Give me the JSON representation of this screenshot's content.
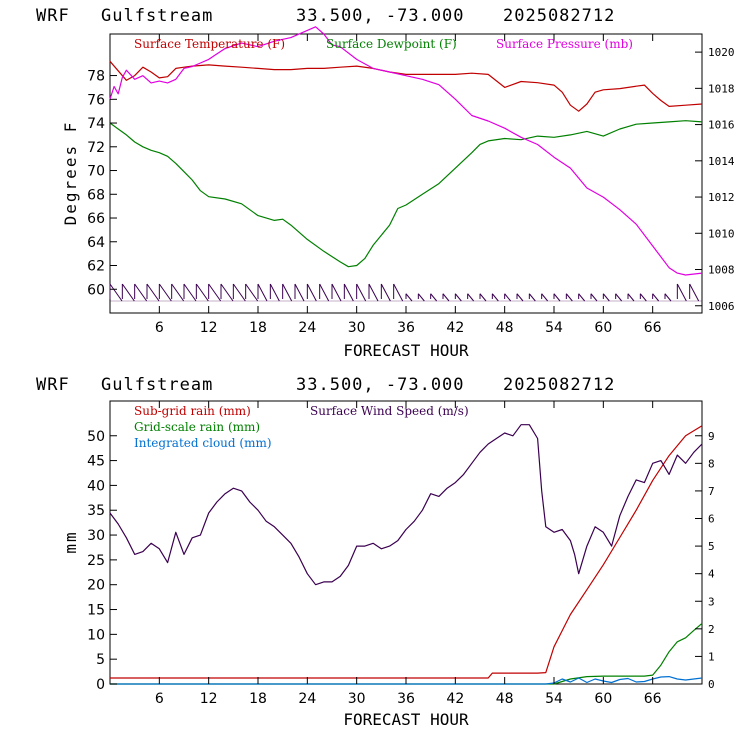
{
  "chart_data": [
    {
      "type": "line",
      "header": {
        "model": "WRF",
        "location": "Gulfstream",
        "coords": "33.500, -73.000",
        "date": "2025082712"
      },
      "xlabel": "FORECAST HOUR",
      "ylabel": "Degrees F",
      "xlim": [
        0,
        72
      ],
      "ylim": [
        58,
        81.5
      ],
      "xticks": [
        6,
        12,
        18,
        24,
        30,
        36,
        42,
        48,
        54,
        60,
        66
      ],
      "xtick_labels": [
        "6",
        "12",
        "18",
        "24",
        "30",
        "36",
        "42",
        "48",
        "54",
        "60",
        "66"
      ],
      "yticks": [
        60,
        62,
        64,
        66,
        68,
        70,
        72,
        74,
        76,
        78
      ],
      "ytick_labels": [
        "60",
        "62",
        "64",
        "66",
        "68",
        "70",
        "72",
        "74",
        "76",
        "78"
      ],
      "y2lim": [
        1005.6,
        1021.0
      ],
      "y2ticks": [
        1006,
        1008,
        1010,
        1012,
        1014,
        1016,
        1018,
        1020
      ],
      "y2tick_labels": [
        "1006",
        "1008",
        "1010",
        "1012",
        "1014",
        "1016",
        "1018",
        "1020"
      ],
      "legend_placement": "top",
      "series": [
        {
          "name": "Surface Temperature (F)",
          "color": "#c00000",
          "axis": "left",
          "x": [
            0,
            1,
            2,
            3,
            4,
            5,
            6,
            7,
            8,
            9,
            10,
            12,
            14,
            16,
            18,
            20,
            22,
            24,
            26,
            28,
            30,
            32,
            34,
            36,
            38,
            40,
            42,
            44,
            46,
            48,
            50,
            52,
            54,
            55,
            56,
            57,
            58,
            59,
            60,
            62,
            64,
            65,
            66,
            67,
            68,
            70,
            72
          ],
          "y": [
            79.2,
            78.4,
            77.6,
            78.0,
            78.7,
            78.3,
            77.8,
            77.9,
            78.6,
            78.7,
            78.8,
            78.9,
            78.8,
            78.7,
            78.6,
            78.5,
            78.5,
            78.6,
            78.6,
            78.7,
            78.8,
            78.6,
            78.3,
            78.1,
            78.1,
            78.1,
            78.1,
            78.2,
            78.1,
            77.0,
            77.5,
            77.4,
            77.2,
            76.6,
            75.5,
            75.0,
            75.6,
            76.6,
            76.8,
            76.9,
            77.1,
            77.2,
            76.5,
            75.9,
            75.4,
            75.5,
            75.6
          ]
        },
        {
          "name": "Surface Dewpoint (F)",
          "color": "#008000",
          "axis": "left",
          "x": [
            0,
            1,
            2,
            3,
            4,
            5,
            6,
            7,
            8,
            9,
            10,
            11,
            12,
            14,
            16,
            18,
            20,
            21,
            22,
            24,
            26,
            28,
            29,
            30,
            31,
            32,
            34,
            35,
            36,
            38,
            40,
            42,
            44,
            45,
            46,
            48,
            50,
            52,
            54,
            56,
            58,
            60,
            62,
            64,
            66,
            68,
            70,
            72
          ],
          "y": [
            74.0,
            73.5,
            73.0,
            72.4,
            72.0,
            71.7,
            71.5,
            71.2,
            70.6,
            69.9,
            69.2,
            68.3,
            67.8,
            67.6,
            67.2,
            66.2,
            65.8,
            65.9,
            65.4,
            64.2,
            63.2,
            62.3,
            61.9,
            62.0,
            62.6,
            63.7,
            65.4,
            66.8,
            67.1,
            68.0,
            68.9,
            70.2,
            71.5,
            72.2,
            72.5,
            72.7,
            72.6,
            72.9,
            72.8,
            73.0,
            73.3,
            72.9,
            73.5,
            73.9,
            74.0,
            74.1,
            74.2,
            74.1
          ]
        },
        {
          "name": "Surface Pressure (mb)",
          "color": "#e000e0",
          "axis": "right",
          "x": [
            0,
            0.5,
            1,
            1.5,
            2,
            3,
            4,
            5,
            6,
            7,
            8,
            9,
            10,
            11,
            12,
            13,
            14,
            16,
            18,
            20,
            22,
            24,
            25,
            26,
            27,
            28,
            30,
            32,
            34,
            36,
            38,
            40,
            42,
            44,
            46,
            48,
            50,
            52,
            54,
            56,
            58,
            60,
            62,
            64,
            66,
            68,
            69,
            70,
            72
          ],
          "y": [
            1017.4,
            1018.1,
            1017.7,
            1018.6,
            1019.0,
            1018.5,
            1018.7,
            1018.3,
            1018.4,
            1018.3,
            1018.5,
            1019.1,
            1019.2,
            1019.4,
            1019.6,
            1019.9,
            1020.2,
            1020.5,
            1020.3,
            1020.6,
            1020.8,
            1021.2,
            1021.4,
            1021.0,
            1020.4,
            1020.3,
            1019.6,
            1019.1,
            1018.9,
            1018.7,
            1018.5,
            1018.2,
            1017.4,
            1016.5,
            1016.2,
            1015.8,
            1015.3,
            1014.9,
            1014.2,
            1013.6,
            1012.5,
            1012.0,
            1011.3,
            1010.5,
            1009.3,
            1008.1,
            1007.8,
            1007.7,
            1007.8
          ]
        }
      ],
      "wind_barbs": {
        "color": "#3a0050",
        "x": [
          0,
          1.5,
          3,
          4.5,
          6,
          7.5,
          9,
          10.5,
          12,
          13.5,
          15,
          16.5,
          18,
          19.5,
          21,
          22.5,
          24,
          25.5,
          27,
          28.5,
          30,
          31.5,
          33,
          34.5,
          36,
          37.5,
          39,
          40.5,
          42,
          43.5,
          45,
          46.5,
          48,
          49.5,
          51,
          52.5,
          54,
          55.5,
          57,
          58.5,
          60,
          61.5,
          63,
          64.5,
          66,
          67.5,
          69,
          70.5
        ],
        "flags": [
          3,
          3,
          3,
          3,
          3,
          3,
          3,
          3,
          3,
          3,
          3,
          3,
          2,
          2,
          2,
          2,
          2,
          2,
          2,
          2,
          2,
          2,
          2,
          2,
          1,
          1,
          1,
          1,
          1,
          1,
          1,
          1,
          1,
          1,
          1,
          1,
          1,
          1,
          1,
          1,
          1,
          1,
          1,
          1,
          1,
          1,
          2,
          2
        ]
      }
    },
    {
      "type": "line",
      "header": {
        "model": "WRF",
        "location": "Gulfstream",
        "coords": "33.500, -73.000",
        "date": "2025082712"
      },
      "xlabel": "FORECAST HOUR",
      "ylabel": "mm",
      "xlim": [
        0,
        72
      ],
      "ylim": [
        0,
        57
      ],
      "xticks": [
        6,
        12,
        18,
        24,
        30,
        36,
        42,
        48,
        54,
        60,
        66
      ],
      "xtick_labels": [
        "6",
        "12",
        "18",
        "24",
        "30",
        "36",
        "42",
        "48",
        "54",
        "60",
        "66"
      ],
      "yticks": [
        0,
        5,
        10,
        15,
        20,
        25,
        30,
        35,
        40,
        45,
        50
      ],
      "ytick_labels": [
        "0",
        "5",
        "10",
        "15",
        "20",
        "25",
        "30",
        "35",
        "40",
        "45",
        "50"
      ],
      "y2lim": [
        0,
        10.26
      ],
      "y2ticks": [
        0,
        1,
        2,
        3,
        4,
        5,
        6,
        7,
        8,
        9
      ],
      "y2tick_labels": [
        "0",
        "1",
        "2",
        "3",
        "4",
        "5",
        "6",
        "7",
        "8",
        "9"
      ],
      "legend_placement": "top-left",
      "series": [
        {
          "name": "Sub-grid rain (mm)",
          "color": "#c00000",
          "axis": "left",
          "x": [
            0,
            10,
            20,
            30,
            40,
            46,
            46.5,
            52,
            53,
            54,
            56,
            58,
            60,
            62,
            64,
            66,
            68,
            70,
            72
          ],
          "y": [
            1.2,
            1.2,
            1.2,
            1.2,
            1.2,
            1.2,
            2.2,
            2.2,
            2.3,
            7.5,
            14.0,
            19.0,
            24.0,
            29.5,
            35.0,
            41.0,
            46.0,
            50.0,
            52.0
          ]
        },
        {
          "name": "Surface Wind Speed (m/s)",
          "color": "#3a0050",
          "axis": "right",
          "x": [
            0,
            1,
            2,
            3,
            4,
            5,
            6,
            7,
            8,
            9,
            10,
            11,
            12,
            13,
            14,
            15,
            16,
            17,
            18,
            19,
            20,
            21,
            22,
            23,
            24,
            25,
            26,
            27,
            28,
            29,
            30,
            31,
            32,
            33,
            34,
            35,
            36,
            37,
            38,
            39,
            40,
            41,
            42,
            43,
            44,
            45,
            46,
            47,
            48,
            49,
            50,
            51,
            52,
            52.5,
            53,
            54,
            55,
            56,
            56.5,
            57,
            58,
            59,
            60,
            61,
            62,
            63,
            64,
            65,
            66,
            67,
            68,
            69,
            70,
            71,
            72
          ],
          "y": [
            6.2,
            5.8,
            5.3,
            4.7,
            4.8,
            5.1,
            4.9,
            4.4,
            5.5,
            4.7,
            5.3,
            5.4,
            6.2,
            6.6,
            6.9,
            7.1,
            7.0,
            6.6,
            6.3,
            5.9,
            5.7,
            5.4,
            5.1,
            4.6,
            4.0,
            3.6,
            3.7,
            3.7,
            3.9,
            4.3,
            5.0,
            5.0,
            5.1,
            4.9,
            5.0,
            5.2,
            5.6,
            5.9,
            6.3,
            6.9,
            6.8,
            7.1,
            7.3,
            7.6,
            8.0,
            8.4,
            8.7,
            8.9,
            9.1,
            9.0,
            9.4,
            9.4,
            8.9,
            7.0,
            5.7,
            5.5,
            5.6,
            5.2,
            4.7,
            4.0,
            5.0,
            5.7,
            5.5,
            5.0,
            6.1,
            6.8,
            7.4,
            7.3,
            8.0,
            8.1,
            7.6,
            8.3,
            8.0,
            8.4,
            8.7
          ]
        },
        {
          "name": "Grid-scale rain (mm)",
          "color": "#008000",
          "axis": "left",
          "x": [
            0,
            10,
            20,
            30,
            40,
            50,
            54,
            56,
            58,
            60,
            62,
            64,
            65,
            66,
            67,
            68,
            69,
            70,
            71,
            72
          ],
          "y": [
            0,
            0,
            0,
            0,
            0,
            0,
            0,
            1.0,
            1.5,
            1.6,
            1.6,
            1.6,
            1.6,
            1.8,
            3.8,
            6.5,
            8.5,
            9.3,
            10.8,
            12.2
          ]
        },
        {
          "name": "Integrated cloud (mm)",
          "color": "#0070d0",
          "axis": "left",
          "x": [
            0,
            10,
            20,
            30,
            40,
            50,
            53,
            54,
            55,
            56,
            57,
            58,
            59,
            60,
            61,
            62,
            63,
            64,
            65,
            66,
            67,
            68,
            69,
            70,
            71,
            72
          ],
          "y": [
            0,
            0,
            0,
            0,
            0,
            0,
            0,
            0.2,
            1.0,
            0.4,
            1.2,
            0.3,
            1.0,
            0.6,
            0.3,
            0.9,
            1.1,
            0.4,
            0.5,
            1.0,
            1.4,
            1.5,
            1.0,
            0.8,
            1.0,
            1.2
          ]
        }
      ]
    }
  ]
}
